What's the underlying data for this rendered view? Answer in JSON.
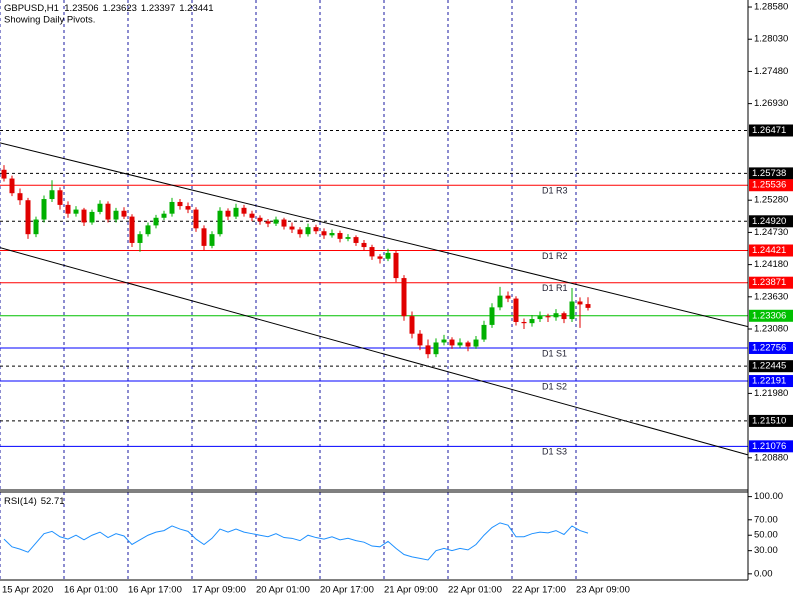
{
  "chart_data": [
    {
      "type": "candlestick",
      "title": "GBPUSD,H1",
      "subtitle": "Showing Daily Pivots.",
      "categories": [
        "15 Apr 2020",
        null,
        null,
        null,
        null,
        null,
        null,
        null,
        "16 Apr 01:00",
        null,
        null,
        null,
        null,
        null,
        null,
        null,
        "16 Apr 17:00",
        null,
        null,
        null,
        null,
        null,
        null,
        null,
        "17 Apr 09:00",
        null,
        null,
        null,
        null,
        null,
        null,
        null,
        "20 Apr 01:00",
        null,
        null,
        null,
        null,
        null,
        null,
        null,
        "20 Apr 17:00",
        null,
        null,
        null,
        null,
        null,
        null,
        null,
        "21 Apr 09:00",
        null,
        null,
        null,
        null,
        null,
        null,
        null,
        "22 Apr 01:00",
        null,
        null,
        null,
        null,
        null,
        null,
        null,
        "22 Apr 17:00",
        null,
        null,
        null,
        null,
        null,
        null,
        null,
        "23 Apr 09:00",
        null
      ],
      "candles": [
        [
          1.258,
          1.2588,
          1.256,
          1.2565
        ],
        [
          1.2565,
          1.257,
          1.2535,
          1.254
        ],
        [
          1.254,
          1.2548,
          1.252,
          1.2528
        ],
        [
          1.2528,
          1.2532,
          1.2462,
          1.247
        ],
        [
          1.247,
          1.25,
          1.2465,
          1.2495
        ],
        [
          1.2495,
          1.2536,
          1.249,
          1.253
        ],
        [
          1.253,
          1.2562,
          1.2525,
          1.2545
        ],
        [
          1.2545,
          1.255,
          1.2512,
          1.252
        ],
        [
          1.252,
          1.2526,
          1.2498,
          1.2505
        ],
        [
          1.2505,
          1.2518,
          1.25,
          1.2512
        ],
        [
          1.2512,
          1.2515,
          1.2484,
          1.249
        ],
        [
          1.249,
          1.2512,
          1.2486,
          1.2508
        ],
        [
          1.2508,
          1.2528,
          1.2504,
          1.2522
        ],
        [
          1.2522,
          1.2526,
          1.249,
          1.2495
        ],
        [
          1.2495,
          1.2515,
          1.249,
          1.251
        ],
        [
          1.251,
          1.2516,
          1.2496,
          1.25
        ],
        [
          1.25,
          1.2504,
          1.2448,
          1.2455
        ],
        [
          1.2455,
          1.2475,
          1.244,
          1.247
        ],
        [
          1.247,
          1.249,
          1.2466,
          1.2485
        ],
        [
          1.2485,
          1.2503,
          1.248,
          1.2498
        ],
        [
          1.2498,
          1.251,
          1.2494,
          1.2505
        ],
        [
          1.2505,
          1.2532,
          1.25,
          1.2525
        ],
        [
          1.2525,
          1.253,
          1.2512,
          1.2518
        ],
        [
          1.2518,
          1.2524,
          1.2506,
          1.2512
        ],
        [
          1.2512,
          1.2516,
          1.2474,
          1.248
        ],
        [
          1.248,
          1.2485,
          1.2442,
          1.245
        ],
        [
          1.245,
          1.2475,
          1.2446,
          1.247
        ],
        [
          1.247,
          1.2516,
          1.2466,
          1.251
        ],
        [
          1.251,
          1.2514,
          1.2494,
          1.25
        ],
        [
          1.25,
          1.2522,
          1.2496,
          1.2515
        ],
        [
          1.2515,
          1.252,
          1.25,
          1.2505
        ],
        [
          1.2505,
          1.251,
          1.2492,
          1.2498
        ],
        [
          1.2498,
          1.2502,
          1.2486,
          1.2492
        ],
        [
          1.2492,
          1.2496,
          1.2482,
          1.2488
        ],
        [
          1.2488,
          1.25,
          1.2484,
          1.2495
        ],
        [
          1.2495,
          1.2498,
          1.2478,
          1.2483
        ],
        [
          1.2483,
          1.249,
          1.2472,
          1.2478
        ],
        [
          1.2478,
          1.2482,
          1.2464,
          1.247
        ],
        [
          1.247,
          1.2488,
          1.2466,
          1.2482
        ],
        [
          1.2482,
          1.2486,
          1.247,
          1.2475
        ],
        [
          1.2475,
          1.248,
          1.2462,
          1.2468
        ],
        [
          1.2468,
          1.2478,
          1.2464,
          1.2472
        ],
        [
          1.2472,
          1.2476,
          1.2456,
          1.2462
        ],
        [
          1.2462,
          1.247,
          1.2458,
          1.2465
        ],
        [
          1.2465,
          1.2468,
          1.245,
          1.2455
        ],
        [
          1.2455,
          1.246,
          1.2442,
          1.2448
        ],
        [
          1.2448,
          1.2452,
          1.2426,
          1.2432
        ],
        [
          1.2432,
          1.2436,
          1.242,
          1.2428
        ],
        [
          1.2428,
          1.2445,
          1.2424,
          1.2438
        ],
        [
          1.2438,
          1.2442,
          1.2388,
          1.2395
        ],
        [
          1.2395,
          1.24,
          1.2322,
          1.233
        ],
        [
          1.233,
          1.2338,
          1.2292,
          1.23
        ],
        [
          1.23,
          1.2306,
          1.2272,
          1.228
        ],
        [
          1.228,
          1.229,
          1.2258,
          1.2265
        ],
        [
          1.2265,
          1.2292,
          1.226,
          1.2285
        ],
        [
          1.2285,
          1.2298,
          1.228,
          1.229
        ],
        [
          1.229,
          1.2294,
          1.2274,
          1.228
        ],
        [
          1.228,
          1.2292,
          1.2276,
          1.2285
        ],
        [
          1.2285,
          1.2288,
          1.227,
          1.2278
        ],
        [
          1.2278,
          1.2296,
          1.2274,
          1.229
        ],
        [
          1.229,
          1.2322,
          1.2286,
          1.2315
        ],
        [
          1.2315,
          1.2352,
          1.231,
          1.2345
        ],
        [
          1.2345,
          1.238,
          1.234,
          1.2365
        ],
        [
          1.2365,
          1.2372,
          1.2354,
          1.236
        ],
        [
          1.236,
          1.2364,
          1.2314,
          1.232
        ],
        [
          1.232,
          1.2326,
          1.2308,
          1.2318
        ],
        [
          1.2318,
          1.2332,
          1.2312,
          1.2325
        ],
        [
          1.2325,
          1.2338,
          1.232,
          1.233
        ],
        [
          1.233,
          1.2334,
          1.232,
          1.2328
        ],
        [
          1.2328,
          1.2342,
          1.2322,
          1.2335
        ],
        [
          1.2335,
          1.2338,
          1.2318,
          1.2325
        ],
        [
          1.2325,
          1.2378,
          1.232,
          1.2355
        ],
        [
          1.2355,
          1.2362,
          1.231,
          1.235
        ],
        [
          1.23506,
          1.23623,
          1.23397,
          1.23441
        ]
      ],
      "up_color": "#00b000",
      "down_color": "#e00000",
      "ylim": [
        1.2033,
        1.287
      ],
      "yticks": [
        {
          "value": 1.2858,
          "label": "1.28580"
        },
        {
          "value": 1.2803,
          "label": "1.28030"
        },
        {
          "value": 1.2748,
          "label": "1.27480"
        },
        {
          "value": 1.2693,
          "label": "1.26930"
        },
        {
          "value": 1.2528,
          "label": "1.25280"
        },
        {
          "value": 1.2473,
          "label": "1.24730"
        },
        {
          "value": 1.2418,
          "label": "1.24180"
        },
        {
          "value": 1.2363,
          "label": "1.23630"
        },
        {
          "value": 1.2308,
          "label": "1.23080"
        },
        {
          "value": 1.2198,
          "label": "1.21980"
        },
        {
          "value": 1.2088,
          "label": "1.20880"
        }
      ],
      "grid": true,
      "grid_color": "#1a1aa0",
      "levels": [
        {
          "value": 1.26471,
          "color": "#000000",
          "dash": true
        },
        {
          "value": 1.25738,
          "color": "#000000",
          "dash": true
        },
        {
          "value": 1.25536,
          "color": "#ff0000",
          "pivot": "D1 R3"
        },
        {
          "value": 1.2492,
          "label": "1.24920",
          "color": "#000000",
          "dash": true
        },
        {
          "value": 1.24421,
          "color": "#ff0000",
          "pivot": "D1 R2"
        },
        {
          "value": 1.23871,
          "color": "#ff0000",
          "pivot": "D1 R1"
        },
        {
          "value": 1.23306,
          "color": "#00c000"
        },
        {
          "value": 1.22756,
          "color": "#0000ff",
          "pivot": "D1 S1"
        },
        {
          "value": 1.22445,
          "color": "#000000",
          "dash": true
        },
        {
          "value": 1.22191,
          "color": "#0000ff",
          "pivot": "D1 S2"
        },
        {
          "value": 1.2151,
          "label": "1.21510",
          "color": "#000000",
          "dash": true
        },
        {
          "value": 1.21076,
          "color": "#0000ff",
          "pivot": "D1 S3"
        }
      ],
      "channel": [
        {
          "x": [
            -0.5,
            93
          ],
          "y": [
            1.2626,
            1.2312
          ]
        },
        {
          "x": [
            -0.5,
            93
          ],
          "y": [
            1.2447,
            1.2093
          ]
        }
      ],
      "channel_color": "#000000"
    },
    {
      "type": "line",
      "name": "RSI(14)",
      "values": [
        45,
        35,
        32,
        28,
        40,
        52,
        55,
        48,
        45,
        50,
        44,
        50,
        54,
        47,
        52,
        49,
        38,
        44,
        50,
        54,
        56,
        62,
        58,
        55,
        45,
        38,
        46,
        58,
        54,
        58,
        54,
        52,
        50,
        48,
        52,
        47,
        46,
        43,
        50,
        47,
        45,
        48,
        44,
        46,
        43,
        41,
        36,
        35,
        42,
        33,
        25,
        22,
        20,
        18,
        30,
        33,
        30,
        33,
        31,
        38,
        50,
        60,
        66,
        63,
        48,
        48,
        52,
        54,
        53,
        56,
        51,
        62,
        56,
        52.71
      ],
      "color": "#1e90ff",
      "ylim": [
        -8,
        106
      ],
      "yticks": [
        {
          "value": 100,
          "label": "100.00"
        },
        {
          "value": 70,
          "label": "70.00"
        },
        {
          "value": 50,
          "label": "50.00"
        },
        {
          "value": 30,
          "label": "30.00"
        },
        {
          "value": 0,
          "label": "0.00"
        }
      ]
    }
  ]
}
